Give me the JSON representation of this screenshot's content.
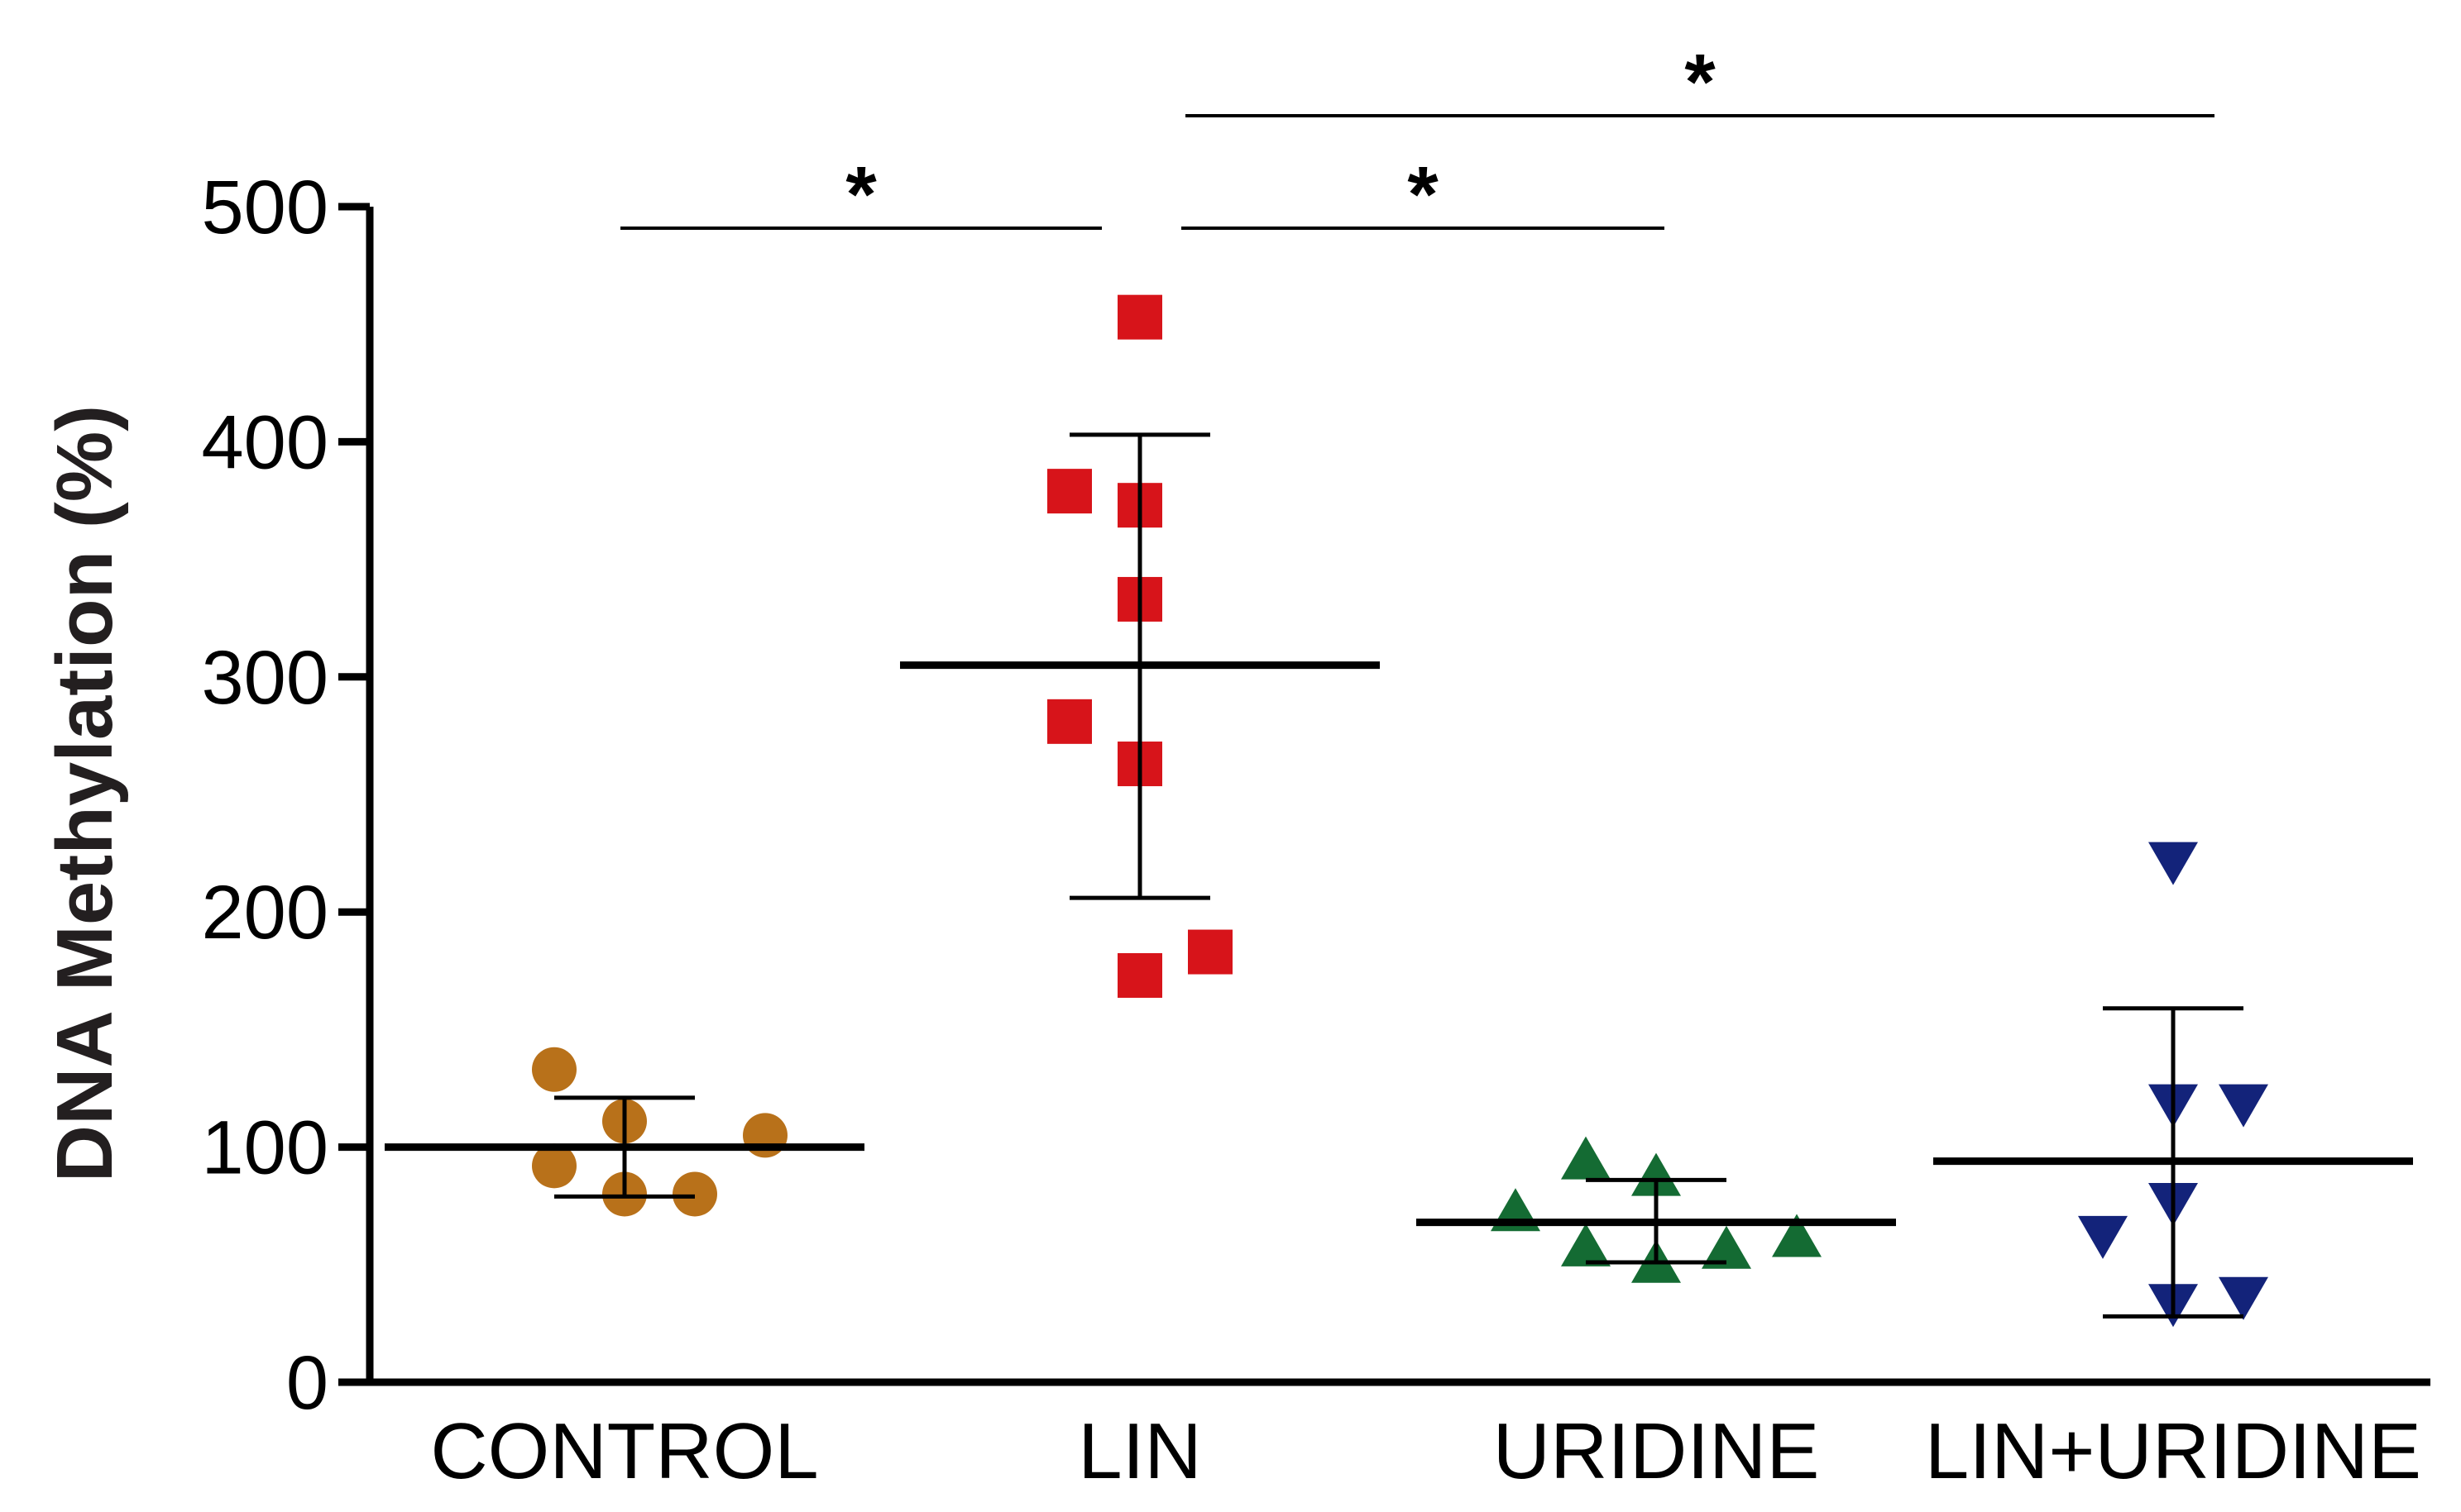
{
  "chart_data": {
    "type": "scatter",
    "ylabel": "DNA Methylation (%)",
    "xlabel": "",
    "title": "",
    "ylim": [
      0,
      500
    ],
    "yticks": [
      0,
      100,
      200,
      300,
      400,
      500
    ],
    "ytick_labels": [
      "0",
      "100",
      "200",
      "300",
      "400",
      "500"
    ],
    "grid": false,
    "categories": [
      "CONTROL",
      "LIN",
      "URIDINE",
      "LIN+URIDINE"
    ],
    "series": [
      {
        "category": "CONTROL",
        "marker": "circle",
        "color": "#b8711a",
        "points": [
          {
            "offset": -1,
            "y": 133
          },
          {
            "offset": 0,
            "y": 111
          },
          {
            "offset": 2,
            "y": 105
          },
          {
            "offset": -1,
            "y": 92
          },
          {
            "offset": 0,
            "y": 80
          },
          {
            "offset": 1,
            "y": 80
          }
        ],
        "mean": 100,
        "err_low": 79,
        "err_high": 121
      },
      {
        "category": "LIN",
        "marker": "square",
        "color": "#d7141a",
        "points": [
          {
            "offset": 0,
            "y": 453
          },
          {
            "offset": -1,
            "y": 379
          },
          {
            "offset": 0,
            "y": 373
          },
          {
            "offset": 0,
            "y": 333
          },
          {
            "offset": -1,
            "y": 281
          },
          {
            "offset": 0,
            "y": 263
          },
          {
            "offset": 1,
            "y": 183
          },
          {
            "offset": 0,
            "y": 173
          }
        ],
        "mean": 305,
        "err_low": 206,
        "err_high": 403
      },
      {
        "category": "URIDINE",
        "marker": "triangle-up",
        "color": "#146b33",
        "points": [
          {
            "offset": -1,
            "y": 94
          },
          {
            "offset": 0,
            "y": 87
          },
          {
            "offset": -2,
            "y": 72
          },
          {
            "offset": 2,
            "y": 61
          },
          {
            "offset": -1,
            "y": 57
          },
          {
            "offset": 1,
            "y": 56
          },
          {
            "offset": 0,
            "y": 50
          }
        ],
        "mean": 68,
        "err_low": 51,
        "err_high": 86
      },
      {
        "category": "LIN+URIDINE",
        "marker": "triangle-down",
        "color": "#13237a",
        "points": [
          {
            "offset": 0,
            "y": 222
          },
          {
            "offset": 0,
            "y": 119
          },
          {
            "offset": 1,
            "y": 119
          },
          {
            "offset": 0,
            "y": 77
          },
          {
            "offset": -1,
            "y": 63
          },
          {
            "offset": 1,
            "y": 37
          },
          {
            "offset": 0,
            "y": 34
          }
        ],
        "mean": 94,
        "err_low": 28,
        "err_high": 159
      }
    ],
    "significance": [
      {
        "from": "CONTROL",
        "to": "LIN",
        "label": "*",
        "level": 1
      },
      {
        "from": "LIN",
        "to": "URIDINE",
        "label": "*",
        "level": 1
      },
      {
        "from": "LIN",
        "to": "LIN+URIDINE",
        "label": "*",
        "level": 2
      }
    ]
  }
}
